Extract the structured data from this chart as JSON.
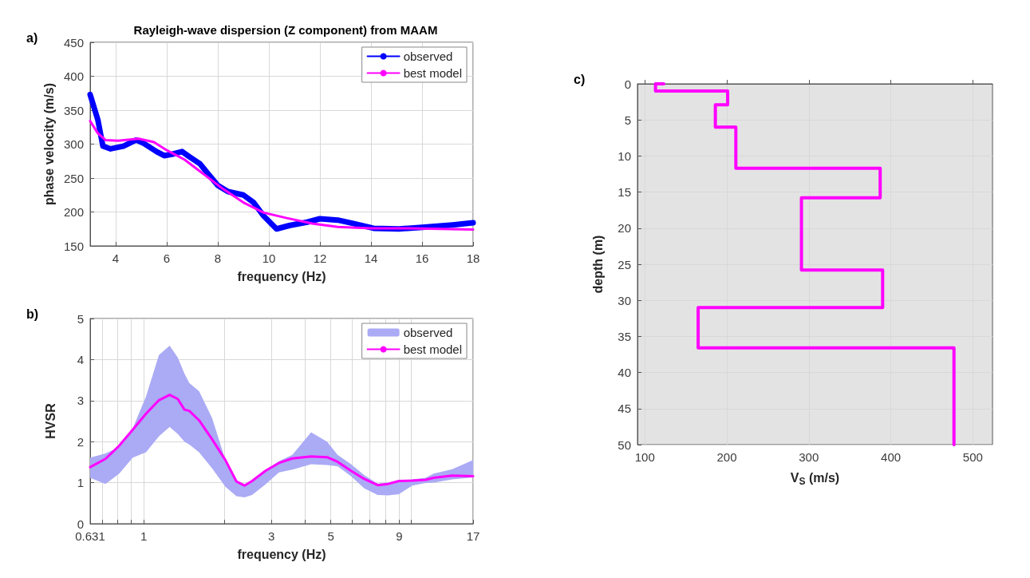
{
  "chart_data": [
    {
      "type": "line",
      "title": "Rayleigh-wave dispersion (Z component) from MAAM",
      "xlabel": "frequency (Hz)",
      "ylabel": "phase velocity (m/s)",
      "annotations": [
        "a)"
      ],
      "xlim": [
        3,
        18
      ],
      "xticks": [
        4,
        6,
        8,
        10,
        12,
        14,
        16,
        18
      ],
      "ylim": [
        150,
        450
      ],
      "yticks": [
        150,
        200,
        250,
        300,
        350,
        400,
        450
      ],
      "grid": true,
      "legend": "top right",
      "series": [
        {
          "name": "observed",
          "color": "#0000ff",
          "x": [
            3.0,
            3.3,
            3.5,
            3.8,
            4.3,
            4.8,
            5.1,
            5.6,
            5.9,
            6.2,
            6.6,
            6.9,
            7.3,
            7.6,
            8.0,
            8.4,
            9.0,
            9.4,
            9.8,
            10.3,
            10.8,
            11.5,
            12.0,
            12.7,
            13.3,
            14.1,
            15.1,
            15.9,
            17.2,
            18.0
          ],
          "values": [
            373,
            336,
            297,
            293,
            297,
            306,
            301,
            289,
            283,
            285,
            289,
            281,
            271,
            257,
            239,
            230,
            225,
            214,
            194,
            175,
            180,
            185,
            190,
            188,
            183,
            176,
            175,
            177,
            181,
            184
          ]
        },
        {
          "name": "best model",
          "color": "#ff00ff",
          "x": [
            3.0,
            3.3,
            3.6,
            4.1,
            4.9,
            5.5,
            6.0,
            6.7,
            7.4,
            8.2,
            9.0,
            9.8,
            10.7,
            11.7,
            12.7,
            14.0,
            15.5,
            18.0
          ],
          "values": [
            334,
            316,
            306,
            305,
            308,
            303,
            291,
            277,
            257,
            234,
            214,
            199,
            191,
            183,
            178,
            176,
            176,
            174
          ]
        }
      ]
    },
    {
      "type": "line",
      "xlabel": "frequency (Hz)",
      "ylabel": "HVSR",
      "annotations": [
        "b)"
      ],
      "log": "x",
      "xlim": [
        0.631,
        17
      ],
      "xticks": [
        0.631,
        {
          "value": 0.7,
          "label": null
        },
        {
          "value": 0.8,
          "label": null
        },
        {
          "value": 0.9,
          "label": null
        },
        1,
        {
          "value": 2,
          "label": null
        },
        3,
        {
          "value": 4,
          "label": null
        },
        5,
        {
          "value": 6,
          "label": null
        },
        {
          "value": 7,
          "label": null
        },
        {
          "value": 8,
          "label": null
        },
        9,
        {
          "value": 10,
          "label": null
        },
        17
      ],
      "ylim": [
        0,
        5
      ],
      "yticks": [
        0,
        1,
        2,
        3,
        4,
        5
      ],
      "grid": true,
      "legend": "top right",
      "x": [
        0.631,
        0.72,
        0.81,
        0.91,
        1.02,
        1.14,
        1.25,
        1.34,
        1.42,
        1.48,
        1.61,
        1.8,
        2.02,
        2.22,
        2.38,
        2.54,
        2.85,
        3.2,
        3.59,
        4.22,
        4.84,
        5.3,
        5.95,
        6.67,
        7.48,
        8.19,
        8.98,
        10.08,
        11.3,
        12.1,
        14.2,
        17
      ],
      "series": [
        {
          "name": "observed",
          "type": "line",
          "color": "#aaaaf5",
          "upper": [
            1.61,
            1.71,
            1.87,
            2.32,
            3.1,
            4.11,
            4.34,
            4.05,
            3.66,
            3.43,
            3.23,
            2.58,
            1.55,
            1.03,
            0.95,
            1.05,
            1.32,
            1.52,
            1.68,
            2.23,
            2.0,
            1.68,
            1.45,
            1.18,
            0.98,
            1.0,
            1.06,
            1.08,
            1.12,
            1.22,
            1.33,
            1.55
          ],
          "values": [
            null,
            null,
            null,
            null,
            null,
            null,
            null,
            null,
            null,
            null,
            null,
            null,
            null,
            null,
            null,
            null,
            null,
            null,
            null,
            null,
            null,
            null,
            null,
            null,
            null,
            null,
            null,
            null,
            null,
            null,
            null,
            null
          ],
          "lower": [
            1.12,
            0.97,
            1.22,
            1.61,
            1.74,
            2.13,
            2.36,
            2.19,
            2.0,
            1.93,
            1.74,
            1.35,
            0.9,
            0.67,
            0.64,
            0.7,
            0.96,
            1.25,
            1.32,
            1.45,
            1.43,
            1.4,
            1.16,
            0.86,
            0.7,
            0.69,
            0.72,
            0.93,
            0.99,
            1.0,
            1.08,
            1.13
          ]
        },
        {
          "name": "best model",
          "color": "#ff00ff",
          "values": [
            1.38,
            1.58,
            1.9,
            2.29,
            2.68,
            3.01,
            3.14,
            3.04,
            2.78,
            2.75,
            2.52,
            2.06,
            1.55,
            1.03,
            0.93,
            1.04,
            1.29,
            1.48,
            1.59,
            1.64,
            1.62,
            1.51,
            1.29,
            1.09,
            0.94,
            0.97,
            1.04,
            1.05,
            1.07,
            1.12,
            1.17,
            1.16
          ]
        }
      ]
    },
    {
      "type": "line",
      "xlabel": "V$_{S}$ (m/s)",
      "ylabel": "depth (m)",
      "annotations": [
        "c)"
      ],
      "xlim": [
        91,
        524
      ],
      "xticks": [
        100,
        200,
        300,
        400,
        500
      ],
      "ylim": [
        50,
        0
      ],
      "yticks": [
        0,
        5,
        10,
        15,
        20,
        25,
        30,
        35,
        40,
        45,
        50
      ],
      "grid": true,
      "series": [
        {
          "color": "#ff00ff",
          "x": [
            123,
            113,
            113,
            201,
            201,
            186,
            186,
            211,
            211,
            387,
            387,
            291,
            291,
            390,
            390,
            165,
            165,
            477,
            477
          ],
          "values": [
            0,
            0,
            1,
            1,
            2.9,
            2.9,
            6,
            6,
            11.7,
            11.7,
            15.8,
            15.8,
            25.8,
            25.8,
            31,
            31,
            36.6,
            36.6,
            50
          ]
        }
      ]
    }
  ]
}
